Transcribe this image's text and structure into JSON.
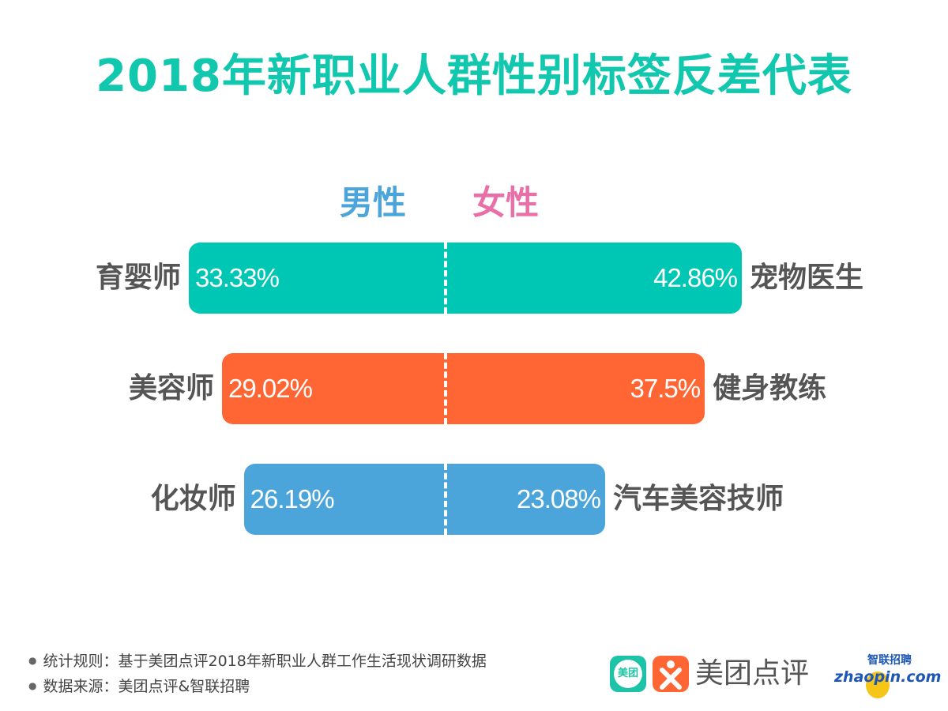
{
  "title": "2018年新职业人群性别标签反差代表",
  "chart_data": {
    "type": "bar",
    "title": "2018年新职业人群性别标签反差代表",
    "legend": {
      "male": "男性",
      "female": "女性"
    },
    "rows": [
      {
        "male_job": "育婴师",
        "male_value": 33.33,
        "male_label": "33.33%",
        "female_job": "宠物医生",
        "female_value": 42.86,
        "female_label": "42.86%",
        "color": "#00c6b4"
      },
      {
        "male_job": "美容师",
        "male_value": 29.02,
        "male_label": "29.02%",
        "female_job": "健身教练",
        "female_value": 37.5,
        "female_label": "37.5%",
        "color": "#ff6634"
      },
      {
        "male_job": "化妆师",
        "male_value": 26.19,
        "male_label": "26.19%",
        "female_job": "汽车美容技师",
        "female_value": 23.08,
        "female_label": "23.08%",
        "color": "#4ba4da"
      }
    ],
    "colors": {
      "male": "#4ba4da",
      "female": "#e86fa8",
      "title": "#11c7ae"
    }
  },
  "footer": {
    "notes": [
      "统计规则：基于美团点评2018年新职业人群工作生活现状调研数据",
      "数据来源：美团点评&智联招聘"
    ],
    "logo_meituan_small": "美团",
    "logo_dianping": "美团点评",
    "logo_zhaopin_cn": "智联招聘",
    "logo_zhaopin_en": "zhaopin.com"
  }
}
